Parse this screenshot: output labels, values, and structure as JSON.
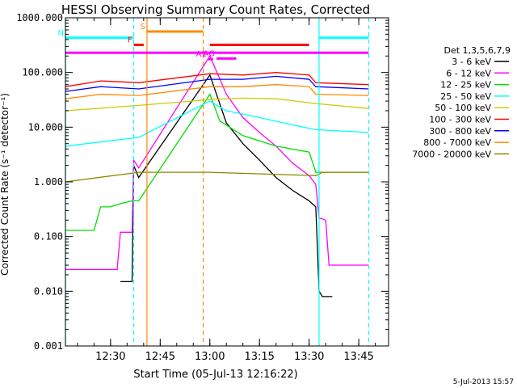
{
  "chart_data": {
    "type": "line",
    "title": "HESSI Observing Summary Count Rates, Corrected",
    "xlabel": "Start Time (05-Jul-13 12:16:22)",
    "ylabel": "Corrected Count Rate (s⁻¹ detector⁻¹)",
    "xlim": [
      "12:16:22",
      "13:54:00"
    ],
    "ylim": [
      0.001,
      1000
    ],
    "yscale": "log",
    "x_ticks": [
      "12:30",
      "12:45",
      "13:00",
      "13:15",
      "13:30",
      "13:45"
    ],
    "y_ticks": [
      "1000.000",
      "100.000",
      "10.000",
      "1.000",
      "0.100",
      "0.010",
      "0.001"
    ],
    "legend": {
      "title": "Det 1,3,5,6,7,9",
      "placement": "right-outside",
      "entries": [
        "3 - 6 keV",
        "6 - 12 keV",
        "12 - 25 keV",
        "25 - 50 keV",
        "50 - 100 keV",
        "100 - 300 keV",
        "300 - 800 keV",
        "800 - 7000 keV",
        "7000 - 20000 keV"
      ]
    },
    "series": [
      {
        "name": "3 - 6 keV",
        "color": "#000000",
        "x": [
          "12:33:00",
          "12:35:00",
          "12:36:30",
          "12:37:00",
          "12:38:30",
          "13:00:00",
          "13:05:00",
          "13:10:00",
          "13:15:00",
          "13:20:00",
          "13:25:00",
          "13:30:00",
          "13:32:00",
          "13:33:00",
          "13:34:00",
          "13:37:00"
        ],
        "values": [
          0.015,
          0.015,
          0.015,
          2.0,
          1.2,
          90,
          12,
          5,
          2.5,
          1.2,
          0.7,
          0.45,
          0.35,
          0.01,
          0.008,
          0.008
        ]
      },
      {
        "name": "6 - 12 keV",
        "color": "#ff00ff",
        "x": [
          "12:16:22",
          "12:30:00",
          "12:32:00",
          "12:33:00",
          "12:36:30",
          "12:37:00",
          "12:38:30",
          "13:00:00",
          "13:05:00",
          "13:10:00",
          "13:15:00",
          "13:20:00",
          "13:25:00",
          "13:30:00",
          "13:32:00",
          "13:33:00",
          "13:35:00",
          "13:36:00",
          "13:48:00"
        ],
        "values": [
          0.025,
          0.025,
          0.025,
          0.12,
          0.12,
          2.5,
          1.8,
          200,
          40,
          15,
          8,
          4.5,
          2.2,
          1.3,
          0.9,
          0.22,
          0.2,
          0.03,
          0.03
        ]
      },
      {
        "name": "12 - 25 keV",
        "color": "#00dd00",
        "x": [
          "12:16:22",
          "12:25:00",
          "12:27:00",
          "12:30:00",
          "12:33:00",
          "12:36:30",
          "12:38:30",
          "13:00:00",
          "13:03:00",
          "13:10:00",
          "13:20:00",
          "13:30:00",
          "13:32:00",
          "13:48:00"
        ],
        "values": [
          0.13,
          0.13,
          0.35,
          0.35,
          0.4,
          0.45,
          0.45,
          40,
          13,
          7,
          4.5,
          3.5,
          1.5,
          1.5
        ]
      },
      {
        "name": "25 - 50 keV",
        "color": "#00ffff",
        "x": [
          "12:16:22",
          "12:38:30",
          "13:00:00",
          "13:05:00",
          "13:15:00",
          "13:25:00",
          "13:32:00",
          "13:48:00"
        ],
        "values": [
          4.5,
          6.5,
          30,
          20,
          15,
          11,
          9,
          8
        ]
      },
      {
        "name": "50 - 100 keV",
        "color": "#cccc00",
        "x": [
          "12:16:22",
          "12:38:30",
          "13:00:00",
          "13:10:00",
          "13:20:00",
          "13:32:00",
          "13:48:00"
        ],
        "values": [
          20,
          25,
          32,
          34,
          33,
          27,
          22
        ]
      },
      {
        "name": "100 - 300 keV",
        "color": "#ff0000",
        "x": [
          "12:16:22",
          "12:27:00",
          "12:38:30",
          "13:00:00",
          "13:10:00",
          "13:20:00",
          "13:30:00",
          "13:32:00",
          "13:48:00"
        ],
        "values": [
          55,
          70,
          65,
          95,
          90,
          100,
          90,
          65,
          60
        ]
      },
      {
        "name": "300 - 800 keV",
        "color": "#0000ff",
        "x": [
          "12:16:22",
          "12:27:00",
          "12:38:30",
          "13:00:00",
          "13:10:00",
          "13:20:00",
          "13:30:00",
          "13:32:00",
          "13:48:00"
        ],
        "values": [
          45,
          55,
          50,
          75,
          75,
          85,
          75,
          55,
          50
        ]
      },
      {
        "name": "800 - 7000 keV",
        "color": "#ff8800",
        "x": [
          "12:16:22",
          "12:27:00",
          "12:38:30",
          "13:00:00",
          "13:10:00",
          "13:20:00",
          "13:30:00",
          "13:32:00",
          "13:48:00"
        ],
        "values": [
          33,
          40,
          38,
          55,
          55,
          60,
          55,
          40,
          38
        ]
      },
      {
        "name": "7000 - 20000 keV",
        "color": "#888800",
        "x": [
          "12:16:22",
          "12:38:30",
          "13:00:00",
          "13:32:00",
          "13:34:00",
          "13:48:00"
        ],
        "values": [
          1.0,
          1.5,
          1.5,
          1.3,
          1.5,
          1.5
        ]
      }
    ],
    "vertical_lines": [
      {
        "x": "12:16:22",
        "color": "#00ffff",
        "dash": "solid"
      },
      {
        "x": "12:37:00",
        "color": "#00ffff",
        "dash": "dashed"
      },
      {
        "x": "12:41:00",
        "color": "#ff8800",
        "dash": "solid"
      },
      {
        "x": "12:58:00",
        "color": "#ff8800",
        "dash": "dashed"
      },
      {
        "x": "13:33:00",
        "color": "#00ffff",
        "dash": "solid"
      },
      {
        "x": "13:48:00",
        "color": "#00ffff",
        "dash": "dashed"
      }
    ],
    "flag_bars": [
      {
        "label": "N",
        "color": "#00ffff",
        "x0": "12:16:22",
        "x1": "12:37:00",
        "y": 430
      },
      {
        "label": "",
        "color": "#00ffff",
        "x0": "13:33:00",
        "x1": "13:48:00",
        "y": 430
      },
      {
        "label": "S",
        "color": "#ff8800",
        "x0": "12:41:00",
        "x1": "12:58:00",
        "y": 560
      },
      {
        "label": "F",
        "color": "#ff0000",
        "x0": "12:37:00",
        "x1": "12:40:00",
        "y": 320
      },
      {
        "label": "",
        "color": "#ff0000",
        "x0": "13:00:00",
        "x1": "13:30:00",
        "y": 320
      },
      {
        "label": "",
        "color": "#ff00ff",
        "x0": "12:16:22",
        "x1": "13:48:00",
        "y": 230
      },
      {
        "label": "A1",
        "color": "#ff00ff",
        "x0": "12:59:30",
        "x1": "13:01:00",
        "y": 175
      },
      {
        "label": "AG",
        "color": "#ff00ff",
        "x0": "13:02:00",
        "x1": "13:08:00",
        "y": 180
      }
    ],
    "grid": false
  },
  "timestamp": "5-Jul-2013 15:57"
}
